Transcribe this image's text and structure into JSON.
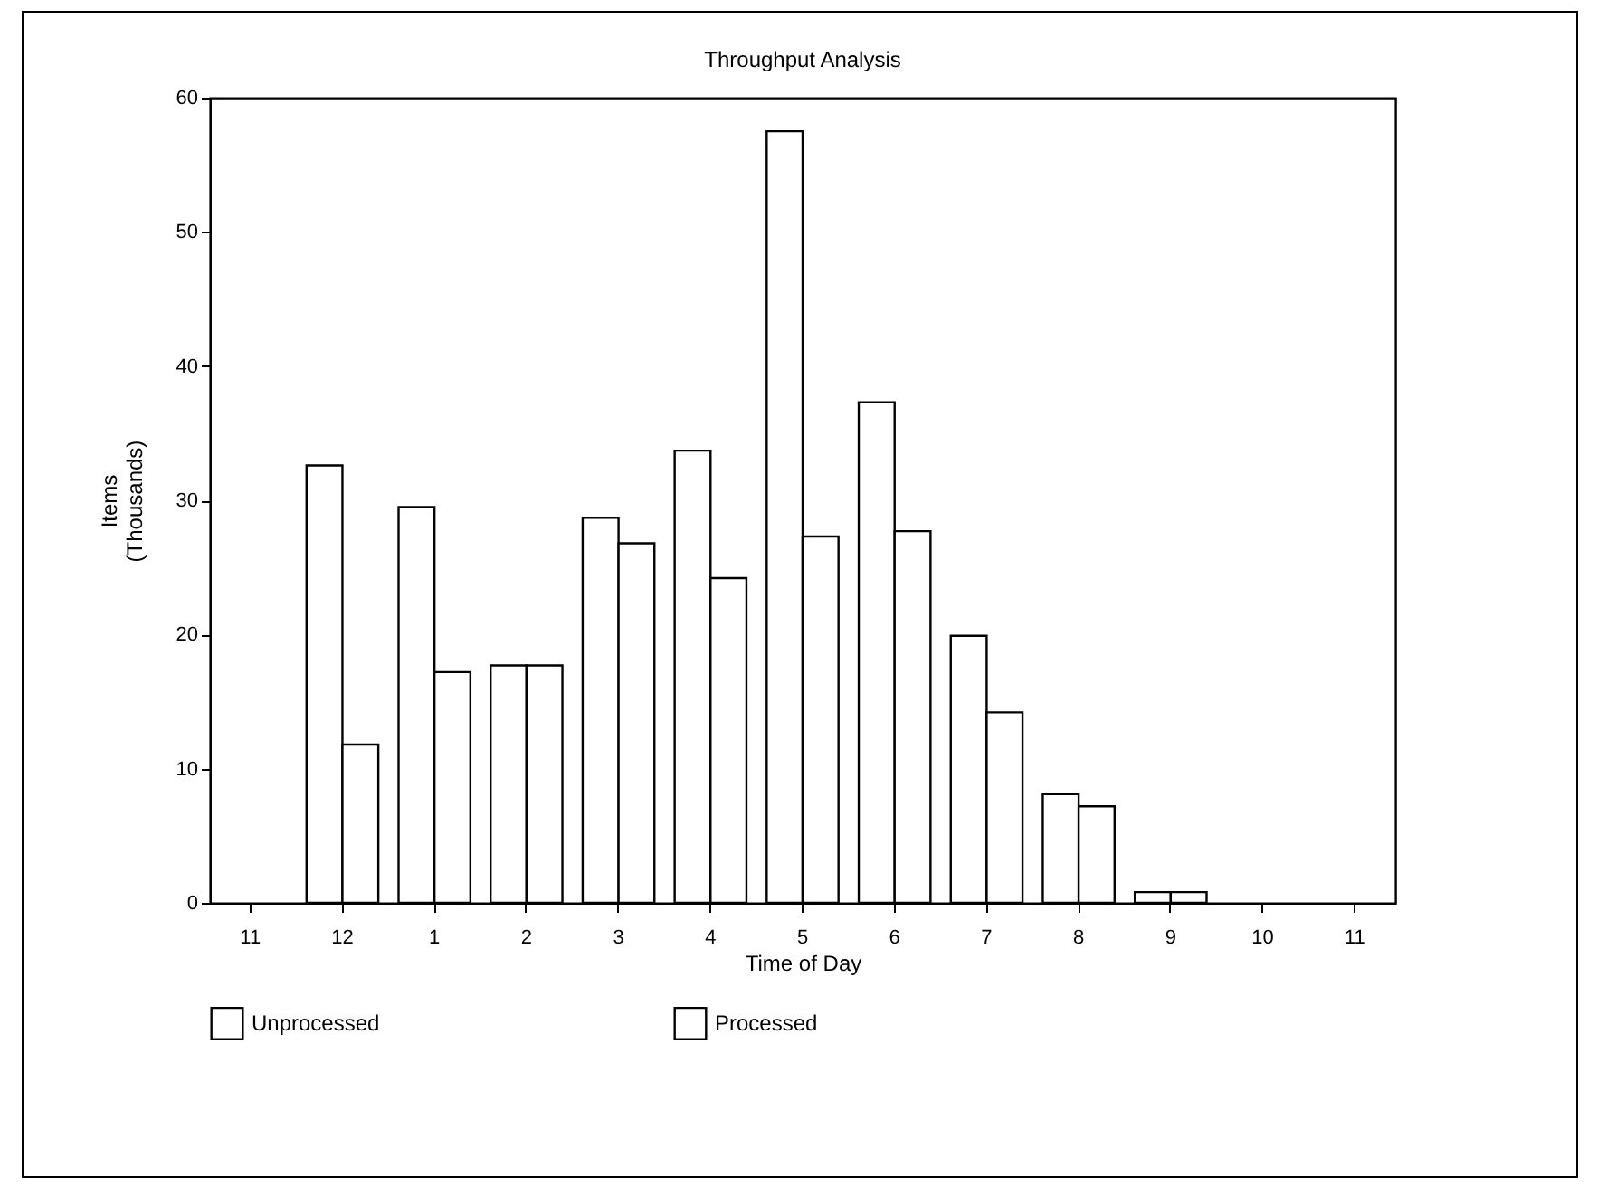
{
  "chart_data": {
    "type": "bar",
    "title": "Throughput Analysis",
    "xlabel": "Time of Day",
    "ylabel": "Items\n(Thousands)",
    "categories": [
      "11",
      "12",
      "1",
      "2",
      "3",
      "4",
      "5",
      "6",
      "7",
      "8",
      "9",
      "10",
      "11"
    ],
    "series": [
      {
        "name": "Unprocessed",
        "color": "#ffffff",
        "values": [
          null,
          32.6,
          29.5,
          17.7,
          28.7,
          33.7,
          57.5,
          37.3,
          19.9,
          8.1,
          0.8,
          null,
          null
        ]
      },
      {
        "name": "Processed",
        "color": "#ffffff",
        "values": [
          null,
          11.8,
          17.2,
          17.7,
          26.8,
          24.2,
          27.3,
          27.7,
          14.2,
          7.2,
          0.8,
          null,
          null
        ]
      }
    ],
    "ylim": [
      0,
      60
    ],
    "yticks": [
      0,
      10,
      20,
      30,
      40,
      50,
      60
    ],
    "grid": false,
    "legend": "bottom"
  }
}
